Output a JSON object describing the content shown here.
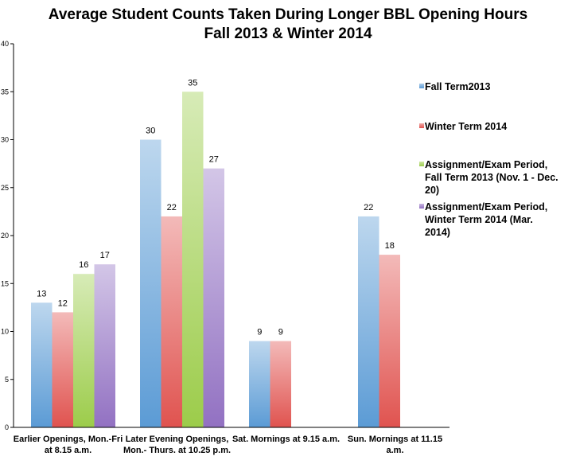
{
  "chart_data": {
    "type": "bar",
    "title": [
      "Average Student Counts Taken During Longer BBL Opening Hours",
      "Fall 2013 & Winter 2014"
    ],
    "categories": [
      [
        "Earlier Openings, Mon.-Fri",
        "at 8.15 a.m."
      ],
      [
        "Later Evening Openings,",
        "Mon.- Thurs. at 10.25 p.m."
      ],
      [
        "Sat. Mornings at 9.15 a.m."
      ],
      [
        "Sun. Mornings at 11.15",
        "a.m."
      ]
    ],
    "series": [
      {
        "name": [
          "Fall Term2013"
        ],
        "values": [
          13,
          30,
          9,
          22
        ],
        "color": "#5b9bd5"
      },
      {
        "name": [
          "Winter Term 2014"
        ],
        "values": [
          12,
          22,
          9,
          18
        ],
        "color": "#e0534f"
      },
      {
        "name": [
          "Assignment/Exam Period,",
          "Fall Term 2013 (Nov. 1 - Dec.",
          "20)"
        ],
        "values": [
          16,
          35,
          null,
          null
        ],
        "color": "#9ccc4a"
      },
      {
        "name": [
          "Assignment/Exam Period,",
          "Winter Term 2014 (Mar.",
          "2014)"
        ],
        "values": [
          17,
          27,
          null,
          null
        ],
        "color": "#9271c2"
      }
    ],
    "ylim": [
      0,
      40
    ],
    "yticks": [
      0,
      5,
      10,
      15,
      20,
      25,
      30,
      35,
      40
    ],
    "legend_position": "right",
    "grid": false,
    "data_labels": true
  }
}
